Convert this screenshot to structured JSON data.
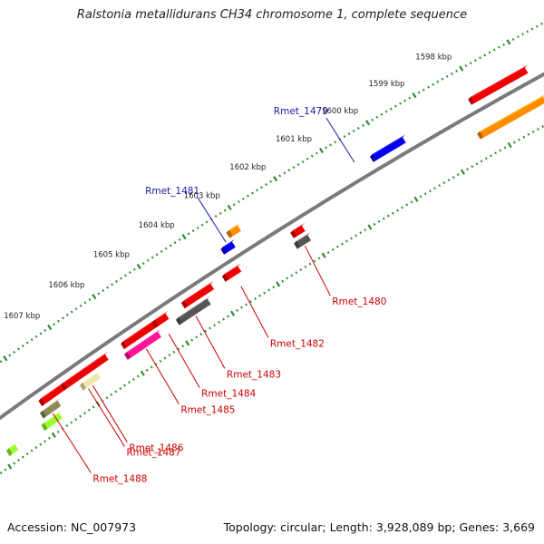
{
  "title": "Ralstonia metallidurans CH34 chromosome 1, complete sequence",
  "footer": {
    "accession": "Accession: NC_007973",
    "stats": "Topology: circular; Length: 3,928,089 bp; Genes: 3,669"
  },
  "scale_ticks": [
    {
      "label": "1598 kbp",
      "kbp": 1598
    },
    {
      "label": "1599 kbp",
      "kbp": 1599
    },
    {
      "label": "1600 kbp",
      "kbp": 1600
    },
    {
      "label": "1601 kbp",
      "kbp": 1601
    },
    {
      "label": "1602 kbp",
      "kbp": 1602
    },
    {
      "label": "1603 kbp",
      "kbp": 1603
    },
    {
      "label": "1604 kbp",
      "kbp": 1604
    },
    {
      "label": "1605 kbp",
      "kbp": 1605
    },
    {
      "label": "1606 kbp",
      "kbp": 1606
    },
    {
      "label": "1607 kbp",
      "kbp": 1607
    }
  ],
  "colors": {
    "backbone": "#7a7a7a",
    "tick": "#2e8b2e",
    "label_blue": "#1a1aa8",
    "label_red": "#cc0000",
    "red": "#ee0000",
    "orange": "#ff8c00",
    "blue": "#0000ee",
    "gray": "#555555",
    "magenta": "#ff1493",
    "khaki": "#eee8aa",
    "olive": "#8b8b5a",
    "lime": "#9aff32"
  },
  "features": [
    {
      "strand": "+",
      "kbp_start": 1597.0,
      "kbp_end": 1598.2,
      "color": "red",
      "track": 1
    },
    {
      "strand": "+",
      "kbp_start": 1599.6,
      "kbp_end": 1600.3,
      "color": "blue",
      "track": 1
    },
    {
      "strand": "+",
      "kbp_start": 1603.05,
      "kbp_end": 1603.3,
      "color": "orange",
      "track": 2
    },
    {
      "strand": "+",
      "kbp_start": 1603.3,
      "kbp_end": 1603.55,
      "color": "blue",
      "track": 1
    },
    {
      "strand": "-",
      "kbp_start": 1597.0,
      "kbp_end": 1598.4,
      "color": "orange",
      "track": 2
    },
    {
      "strand": "-",
      "kbp_start": 1602.05,
      "kbp_end": 1602.3,
      "color": "red",
      "track": 1
    },
    {
      "strand": "-",
      "kbp_start": 1602.05,
      "kbp_end": 1602.35,
      "color": "gray",
      "track": 2
    },
    {
      "strand": "-",
      "kbp_start": 1603.45,
      "kbp_end": 1603.8,
      "color": "red",
      "track": 1
    },
    {
      "strand": "-",
      "kbp_start": 1604.05,
      "kbp_end": 1604.7,
      "color": "red",
      "track": 1
    },
    {
      "strand": "-",
      "kbp_start": 1604.25,
      "kbp_end": 1604.95,
      "color": "gray",
      "track": 2
    },
    {
      "strand": "-",
      "kbp_start": 1605.05,
      "kbp_end": 1605.35,
      "color": "red",
      "track": 1
    },
    {
      "strand": "-",
      "kbp_start": 1605.35,
      "kbp_end": 1606.05,
      "color": "red",
      "track": 1
    },
    {
      "strand": "-",
      "kbp_start": 1605.35,
      "kbp_end": 1606.1,
      "color": "magenta",
      "track": 2
    },
    {
      "strand": "-",
      "kbp_start": 1606.4,
      "kbp_end": 1607.4,
      "color": "red",
      "track": 1
    },
    {
      "strand": "-",
      "kbp_start": 1606.7,
      "kbp_end": 1607.1,
      "color": "khaki",
      "track": 2
    },
    {
      "strand": "-",
      "kbp_start": 1607.4,
      "kbp_end": 1607.9,
      "color": "red",
      "track": 1
    },
    {
      "strand": "-",
      "kbp_start": 1607.6,
      "kbp_end": 1608.0,
      "color": "olive",
      "track": 2
    },
    {
      "strand": "-",
      "kbp_start": 1607.7,
      "kbp_end": 1608.1,
      "color": "lime",
      "track": 3
    },
    {
      "strand": "-",
      "kbp_start": 1608.7,
      "kbp_end": 1608.9,
      "color": "lime",
      "track": 3
    }
  ],
  "gene_labels": [
    {
      "text": "Rmet_1479",
      "color": "label_blue",
      "side": "outer",
      "kbp": 1600.6
    },
    {
      "text": "Rmet_1481",
      "color": "label_blue",
      "side": "outer",
      "kbp": 1603.4
    },
    {
      "text": "Rmet_1480",
      "color": "label_red",
      "side": "inner",
      "kbp": 1602.2
    },
    {
      "text": "Rmet_1482",
      "color": "label_red",
      "side": "inner",
      "kbp": 1603.6
    },
    {
      "text": "Rmet_1483",
      "color": "label_red",
      "side": "inner",
      "kbp": 1604.6
    },
    {
      "text": "Rmet_1484",
      "color": "label_red",
      "side": "inner",
      "kbp": 1605.2
    },
    {
      "text": "Rmet_1485",
      "color": "label_red",
      "side": "inner",
      "kbp": 1605.7
    },
    {
      "text": "Rmet_1486",
      "color": "label_red",
      "side": "inner",
      "kbp": 1606.9
    },
    {
      "text": "Rmet_1487",
      "color": "label_red",
      "side": "inner",
      "kbp": 1607.0
    },
    {
      "text": "Rmet_1488",
      "color": "label_red",
      "side": "inner",
      "kbp": 1607.8
    }
  ]
}
